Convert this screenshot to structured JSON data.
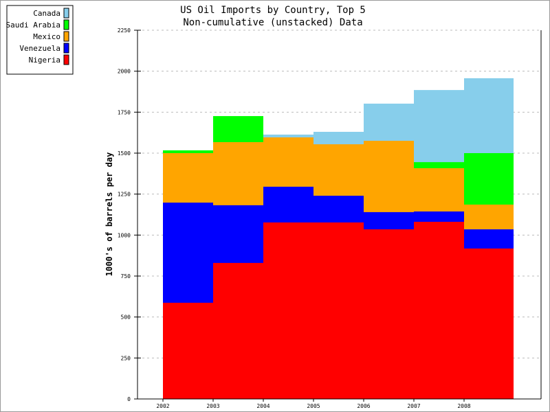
{
  "chart_data": {
    "type": "area",
    "style": "step, non-cumulative overlapping",
    "title": "US Oil Imports by Country, Top 5",
    "subtitle": "Non-cumulative (unstacked) Data",
    "xlabel": "",
    "ylabel": "1000's of barrels per day",
    "x": [
      "2002",
      "2003",
      "2004",
      "2005",
      "2006",
      "2007",
      "2008"
    ],
    "ylim": [
      0,
      2250
    ],
    "yticks": [
      0,
      250,
      500,
      750,
      1000,
      1250,
      1500,
      1750,
      2000,
      2250
    ],
    "grid": true,
    "legend_placement": "top-left",
    "series": [
      {
        "name": "Canada",
        "color": "#87CEEB",
        "values": [
          null,
          null,
          1613,
          1630,
          1802,
          1885,
          1957
        ]
      },
      {
        "name": "Saudi Arabia",
        "color": "#00FF00",
        "values": [
          1517,
          1726,
          null,
          null,
          null,
          1445,
          1500
        ]
      },
      {
        "name": "Mexico",
        "color": "#FFA500",
        "values": [
          1500,
          1567,
          1596,
          1554,
          1575,
          1408,
          1186
        ]
      },
      {
        "name": "Venezuela",
        "color": "#0000FF",
        "values": [
          1198,
          1182,
          1295,
          1240,
          1140,
          1144,
          1035
        ]
      },
      {
        "name": "Nigeria",
        "color": "#FF0000",
        "values": [
          587,
          830,
          1077,
          1077,
          1035,
          1081,
          918
        ]
      }
    ]
  }
}
